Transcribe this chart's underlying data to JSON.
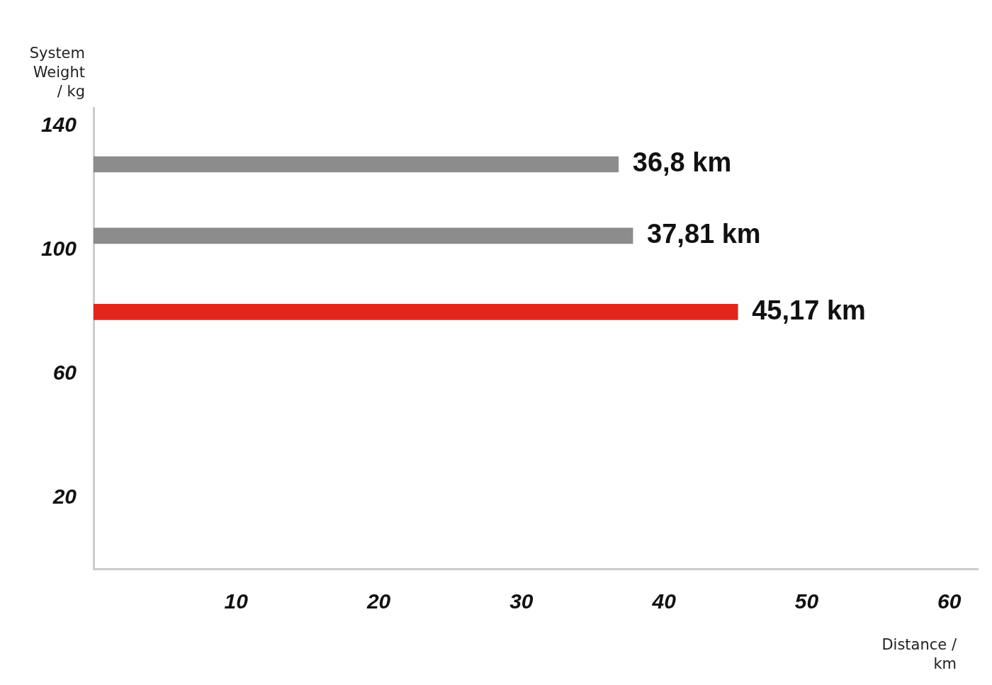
{
  "chart_data": {
    "type": "bar",
    "orientation": "horizontal",
    "ylabel": "System Weight / kg",
    "xlabel": "Distance / km",
    "x": [
      127.7,
      104.6,
      80
    ],
    "values": [
      36.8,
      37.81,
      45.17
    ],
    "colors": [
      "#8c8c8c",
      "#8c8c8c",
      "#e3261c"
    ],
    "value_labels": [
      "36,8 km",
      "37,81 km",
      "45,17 km"
    ],
    "xlim": [
      0,
      62
    ],
    "xticks": [
      10,
      20,
      30,
      40,
      50,
      60
    ],
    "ylim": [
      -3,
      146
    ],
    "yticks": [
      20,
      60,
      100,
      140
    ],
    "grid": false,
    "legend": false
  }
}
